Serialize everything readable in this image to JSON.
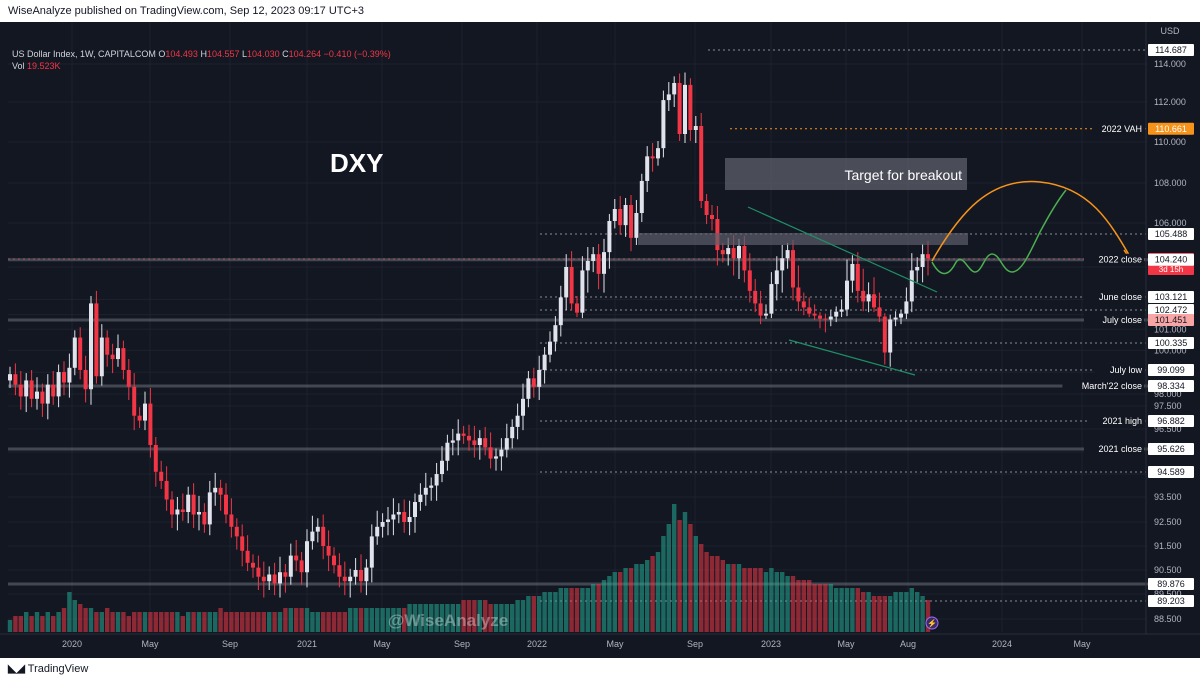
{
  "header": {
    "published": "WiseAnalyze published on TradingView.com, Sep 12, 2023 09:17 UTC+3"
  },
  "footer": {
    "brand": "TradingView"
  },
  "symbol": {
    "title": "US Dollar Index, 1W, CAPITALCOM",
    "o_label": "O",
    "o": "104.493",
    "h_label": "H",
    "h": "104.557",
    "l_label": "L",
    "l": "104.030",
    "c_label": "C",
    "c": "104.264",
    "change": "−0.410 (−0.39%)",
    "vol_label": "Vol",
    "vol": "19.523K"
  },
  "currency": "USD",
  "watermark": "@WiseAnalyze",
  "chart_data": {
    "type": "candlestick",
    "title": "DXY",
    "y_axis": {
      "ticks": [
        "114.000",
        "112.000",
        "110.000",
        "108.000",
        "106.000",
        "104.000",
        "103.000",
        "102.000",
        "101.000",
        "100.000",
        "99.000",
        "98.000",
        "97.500",
        "96.500",
        "95.500",
        "94.500",
        "93.500",
        "92.500",
        "91.500",
        "90.500",
        "89.500",
        "88.500"
      ]
    },
    "x_axis": {
      "ticks": [
        "2020",
        "May",
        "Sep",
        "2021",
        "May",
        "Sep",
        "2022",
        "May",
        "Sep",
        "2023",
        "May",
        "Aug",
        "2024",
        "May"
      ]
    },
    "price_labels": [
      {
        "value": "114.687",
        "label": ""
      },
      {
        "value": "110.661",
        "label": "2022 VAH",
        "color": "#f7931a"
      },
      {
        "value": "105.488",
        "label": ""
      },
      {
        "value": "104.264",
        "label": "",
        "sub": "3d 15h",
        "color": "#f23645"
      },
      {
        "value": "104.240",
        "label": "2022 close"
      },
      {
        "value": "103.121",
        "label": "June close"
      },
      {
        "value": "102.472",
        "label": ""
      },
      {
        "value": "101.451",
        "label": "July close",
        "color": "#f7a5a5"
      },
      {
        "value": "100.335",
        "label": ""
      },
      {
        "value": "99.099",
        "label": "July low"
      },
      {
        "value": "98.334",
        "label": "March'22 close"
      },
      {
        "value": "96.882",
        "label": "2021 high"
      },
      {
        "value": "95.626",
        "label": "2021 close"
      },
      {
        "value": "94.589",
        "label": ""
      },
      {
        "value": "89.876",
        "label": ""
      },
      {
        "value": "89.203",
        "label": ""
      }
    ],
    "annotations": {
      "target": "Target for breakout"
    },
    "series": [
      {
        "name": "price",
        "closes": [
          98.9,
          98.4,
          97.9,
          98.6,
          97.8,
          98.1,
          97.6,
          98.4,
          97.9,
          99.0,
          98.5,
          99.2,
          100.6,
          99.1,
          98.2,
          102.8,
          98.8,
          100.6,
          99.8,
          99.6,
          100.1,
          99.1,
          98.3,
          97.1,
          96.9,
          97.6,
          95.8,
          94.6,
          94.2,
          93.4,
          92.8,
          93.0,
          92.9,
          93.6,
          92.8,
          92.9,
          92.4,
          93.7,
          93.9,
          93.6,
          92.8,
          92.3,
          91.9,
          91.3,
          90.8,
          90.6,
          90.2,
          90.0,
          90.3,
          89.9,
          90.4,
          90.2,
          91.1,
          90.9,
          90.4,
          91.7,
          92.1,
          92.3,
          91.5,
          91.1,
          90.7,
          90.2,
          90.0,
          90.2,
          90.5,
          90.0,
          90.6,
          91.9,
          92.3,
          92.5,
          92.6,
          92.8,
          92.9,
          92.5,
          92.7,
          93.3,
          93.6,
          93.9,
          94.0,
          94.5,
          95.1,
          95.9,
          96.0,
          96.3,
          96.2,
          96.0,
          95.8,
          96.1,
          95.7,
          95.2,
          95.3,
          95.6,
          96.1,
          96.6,
          97.1,
          97.8,
          98.7,
          98.3,
          99.1,
          99.8,
          100.4,
          101.2,
          103.1,
          104.0,
          102.8,
          102.2,
          103.9,
          104.2,
          104.5,
          103.8,
          104.6,
          106.1,
          106.7,
          105.9,
          106.9,
          105.3,
          106.5,
          108.1,
          109.3,
          109.2,
          109.7,
          112.1,
          112.4,
          113.0,
          110.4,
          112.9,
          110.6,
          110.8,
          107.1,
          106.4,
          106.2,
          104.7,
          104.5,
          104.8,
          104.3,
          104.9,
          103.9,
          103.3,
          102.8,
          101.9,
          102.1,
          103.5,
          103.9,
          104.3,
          104.7,
          103.4,
          102.9,
          102.6,
          102.1,
          101.9,
          101.6,
          101.5,
          101.8,
          102.3,
          102.5,
          103.6,
          104.1,
          103.3,
          102.9,
          103.2,
          102.6,
          101.8,
          99.9,
          101.5,
          101.7,
          102.1,
          102.9,
          103.9,
          104.0,
          104.5,
          104.3
        ]
      },
      {
        "name": "volume",
        "values": [
          3,
          4,
          4,
          5,
          4,
          5,
          4,
          5,
          4,
          5,
          6,
          10,
          8,
          7,
          6,
          6,
          5,
          5,
          6,
          5,
          5,
          5,
          4,
          5,
          5,
          5,
          5,
          5,
          5,
          5,
          5,
          5,
          4,
          5,
          5,
          5,
          5,
          5,
          5,
          6,
          5,
          5,
          5,
          5,
          5,
          5,
          5,
          5,
          5,
          5,
          5,
          6,
          6,
          6,
          6,
          6,
          5,
          5,
          5,
          5,
          5,
          5,
          5,
          6,
          6,
          6,
          6,
          6,
          6,
          6,
          6,
          6,
          6,
          6,
          7,
          7,
          7,
          7,
          7,
          7,
          7,
          7,
          7,
          7,
          8,
          8,
          8,
          8,
          8,
          7,
          7,
          7,
          7,
          7,
          8,
          8,
          9,
          9,
          9,
          10,
          10,
          10,
          11,
          11,
          11,
          11,
          11,
          11,
          12,
          12,
          13,
          14,
          15,
          15,
          16,
          16,
          17,
          17,
          18,
          19,
          20,
          24,
          27,
          32,
          28,
          30,
          27,
          24,
          22,
          20,
          19,
          19,
          18,
          17,
          17,
          17,
          16,
          16,
          16,
          16,
          15,
          16,
          15,
          15,
          14,
          14,
          13,
          13,
          13,
          12,
          12,
          12,
          12,
          11,
          11,
          11,
          11,
          11,
          10,
          10,
          9,
          9,
          9,
          9,
          10,
          10,
          10,
          11,
          10,
          9,
          8,
          7,
          6
        ]
      }
    ]
  }
}
